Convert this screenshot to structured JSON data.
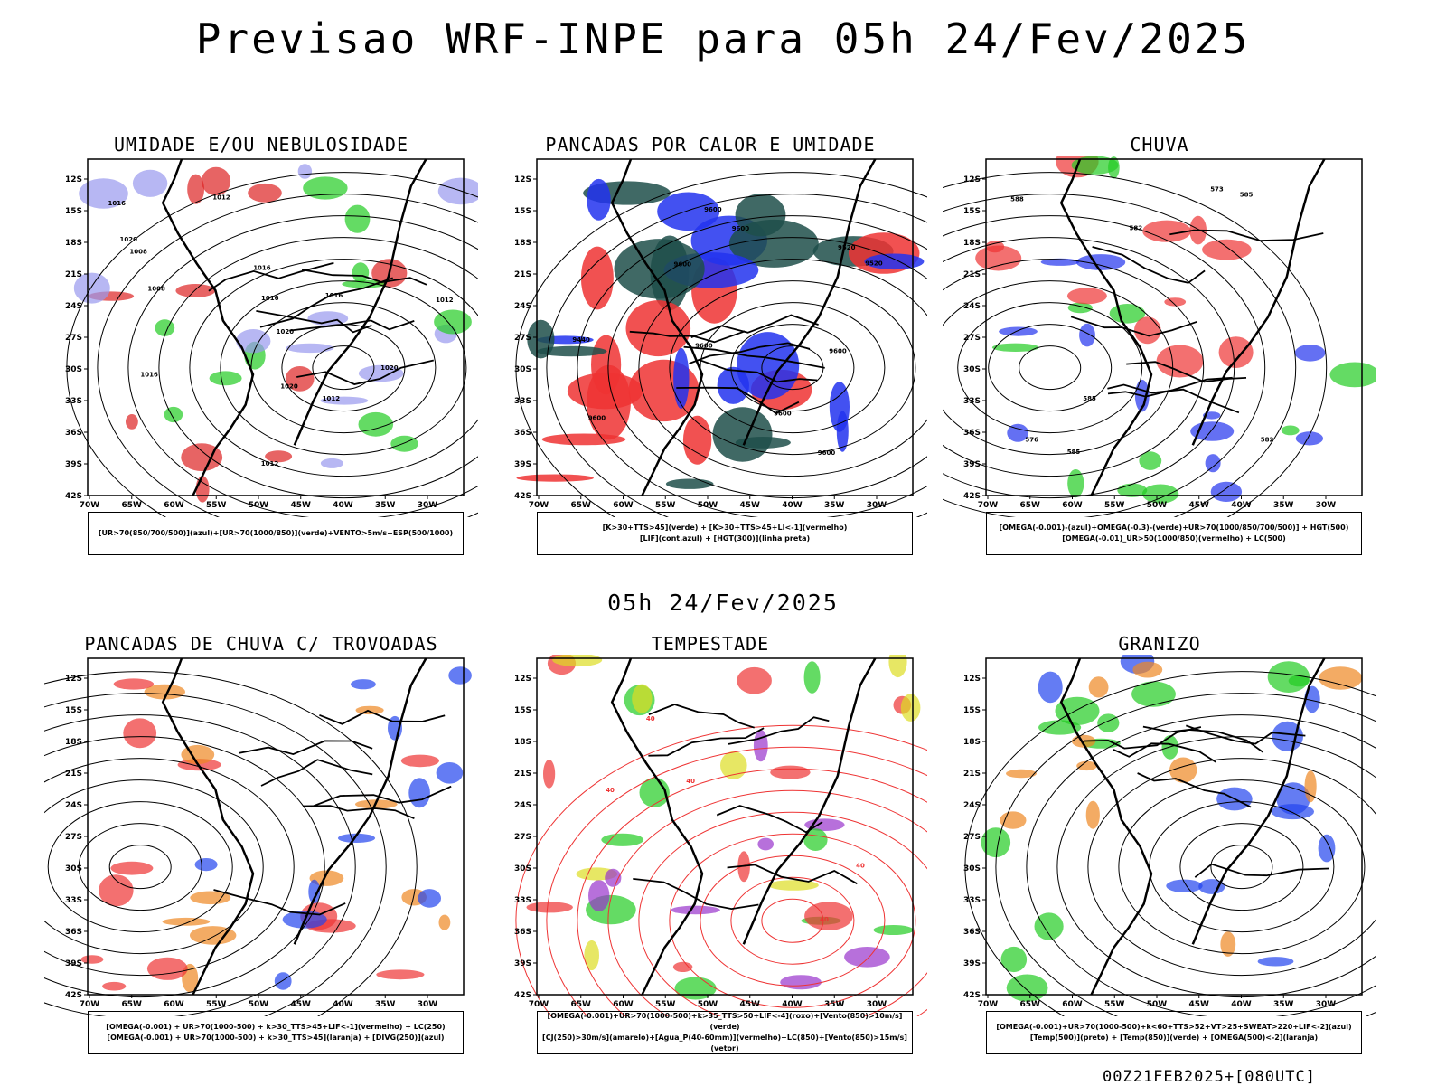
{
  "page": {
    "title": "Previsao WRF-INPE  para 05h 24/Fev/2025",
    "mid_date": "05h 24/Fev/2025",
    "run_label": "00Z21FEB2025+[080UTC]"
  },
  "axes": {
    "lat_labels": [
      "12S",
      "15S",
      "18S",
      "21S",
      "24S",
      "27S",
      "30S",
      "33S",
      "36S",
      "39S",
      "42S"
    ],
    "lon_labels": [
      "70W",
      "65W",
      "60W",
      "55W",
      "50W",
      "45W",
      "40W",
      "35W",
      "30W"
    ]
  },
  "chart_data": [
    {
      "type": "map",
      "title": "UMIDADE E/OU NEBULOSIDADE",
      "legend": [
        "[UR>70(850/700/500)](azul)+[UR>70(1000/850)](verde)+VENTO>5m/s+ESP(500/1000)"
      ],
      "field_labels": [
        "1012",
        "1016",
        "1008",
        "1020",
        "1016",
        "1012",
        "1012",
        "1016",
        "1020",
        "1020",
        "1008",
        "1012",
        "1016",
        "1020",
        "1016"
      ],
      "colors": [
        "#9999ee",
        "#22cc22",
        "#dd2222"
      ]
    },
    {
      "type": "map",
      "title": "PANCADAS POR CALOR E UMIDADE",
      "legend": [
        "[K>30+TTS>45](verde) + [K>30+TTS>45+LI<-1](vermelho)",
        "[LIF](cont.azul) + [HGT(300)](linha preta)"
      ],
      "field_labels": [
        "9600",
        "9600",
        "9600",
        "9600",
        "9600",
        "9600",
        "9600",
        "9520",
        "9600",
        "9440",
        "9520"
      ],
      "colors": [
        "#ee3333",
        "#1f4f4a",
        "#2233ee"
      ]
    },
    {
      "type": "map",
      "title": "CHUVA",
      "legend": [
        "[OMEGA(-0.001)-(azul)+OMEGA(-0.3)-(verde)+UR>70(1000/850/700/500)] + HGT(500)",
        "[OMEGA(-0.01)_UR>50(1000/850)(vermelho) + LC(500)"
      ],
      "field_labels": [
        "585",
        "585",
        "582",
        "585",
        "573",
        "576",
        "582",
        "588"
      ],
      "colors": [
        "#2233ee",
        "#22cc22",
        "#ee3333"
      ]
    },
    {
      "type": "map",
      "title": "PANCADAS DE CHUVA C/ TROVOADAS",
      "legend": [
        "[OMEGA(-0.001) + UR>70(1000-500) + k>30_TTS>45+LIF<-1](vermelho) + LC(250)",
        "[OMEGA(-0.001) + UR>70(1000-500) + k>30_TTS>45](laranja) + [DIVG(250)](azul)"
      ],
      "field_labels": [],
      "colors": [
        "#ee3333",
        "#ee8822",
        "#2244ee"
      ]
    },
    {
      "type": "map",
      "title": "TEMPESTADE",
      "legend": [
        "[OMEGA(-0.001)+UR>70(1000-500)+k>35_TTS>50+LIF<-4](roxo)+[Vento(850)>10m/s](verde)",
        "[CJ(250)>30m/s](amarelo)+[Agua_P(40-60mm)](vermelho)+LC(850)+[Vento(850)>15m/s](vetor)"
      ],
      "field_labels": [
        "40",
        "40",
        "40",
        "40",
        "40"
      ],
      "colors": [
        "#ee3333",
        "#22cc22",
        "#dddd22",
        "#9933cc"
      ]
    },
    {
      "type": "map",
      "title": "GRANIZO",
      "legend": [
        "[OMEGA(-0.001)+UR>70(1000-500)+k<60+TTS>52+VT>25+SWEAT>220+LIF<-2](azul)",
        "[Temp(500)](preto) + [Temp(850)](verde) + [OMEGA(500)<-2](laranja)"
      ],
      "field_labels": [],
      "colors": [
        "#22cc22",
        "#ee8822",
        "#2244ee"
      ]
    }
  ]
}
